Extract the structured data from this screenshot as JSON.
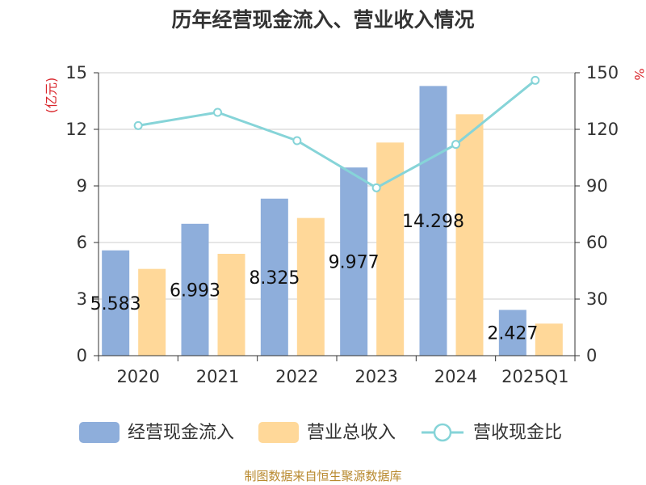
{
  "chart_data": {
    "type": "bar",
    "title": "历年经营现金流入、营业收入情况",
    "categories": [
      "2020",
      "2021",
      "2022",
      "2023",
      "2024",
      "2025Q1"
    ],
    "series": [
      {
        "name": "经营现金流入",
        "type": "bar",
        "axis": "left",
        "color": "#8eaedb",
        "values": [
          5.583,
          6.993,
          8.325,
          9.977,
          14.298,
          2.427
        ]
      },
      {
        "name": "营业总收入",
        "type": "bar",
        "axis": "left",
        "color": "#ffd899",
        "values": [
          4.6,
          5.4,
          7.3,
          11.3,
          12.8,
          1.7
        ]
      },
      {
        "name": "营收现金比",
        "type": "line",
        "axis": "right",
        "color": "#86d4d8",
        "values": [
          122,
          129,
          114,
          89,
          112,
          146
        ]
      }
    ],
    "data_labels": [
      "5.583",
      "6.993",
      "8.325",
      "9.977",
      "14.298",
      "2.427"
    ],
    "left_axis": {
      "unit": "(亿元)",
      "ylim": [
        0,
        15
      ],
      "ticks": [
        "0",
        "3",
        "6",
        "9",
        "12",
        "15"
      ]
    },
    "right_axis": {
      "unit": "%",
      "ylim": [
        0,
        150
      ],
      "ticks": [
        "0",
        "30",
        "60",
        "90",
        "120",
        "150"
      ]
    },
    "grid": true,
    "legend": "bottom"
  },
  "source_text": "制图数据来自恒生聚源数据库"
}
